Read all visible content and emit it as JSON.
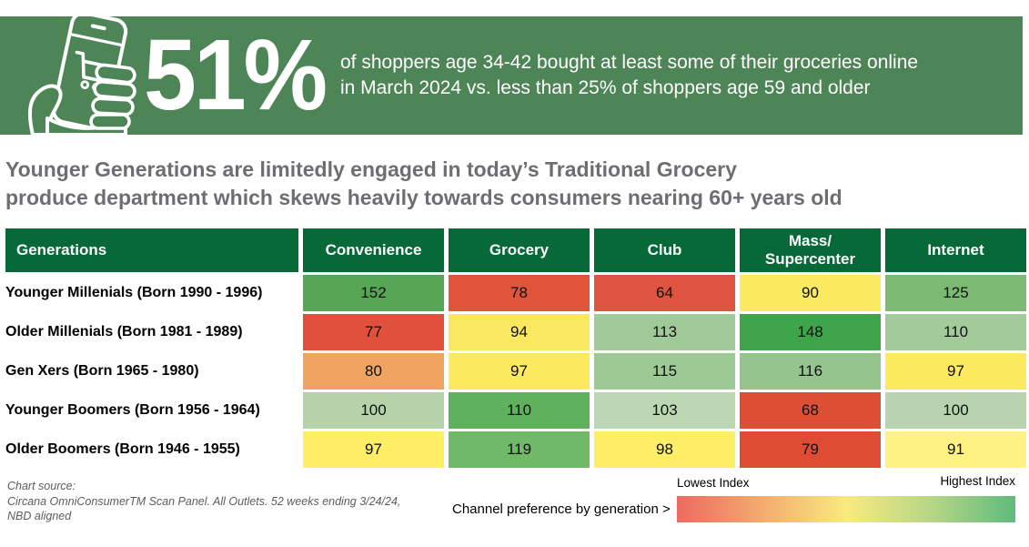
{
  "banner": {
    "bg_color": "#4e8556",
    "icon": "phone-shopping-cart-icon",
    "stat": "51%",
    "description_line1": "of shoppers age 34-42 bought at least some of their groceries online",
    "description_line2": "in March 2024 vs. less than 25% of shoppers age 59 and older"
  },
  "headline": {
    "line1": "Younger Generations are limitedly engaged in today’s Traditional Grocery",
    "line2": "produce department which skews heavily towards consumers nearing 60+ years old"
  },
  "table": {
    "header_bg": "#076838",
    "header": [
      "Generations",
      "Convenience",
      "Grocery",
      "Club",
      "Mass/\nSupercenter",
      "Internet"
    ],
    "cell_colors": [
      [
        "#56a656",
        "#e0543c",
        "#df5440",
        "#fbe95f",
        "#7cba73"
      ],
      [
        "#e0503a",
        "#fae960",
        "#a0ca97",
        "#3fa54a",
        "#a3cb9a"
      ],
      [
        "#efa55f",
        "#fbe960",
        "#9dc994",
        "#95c58d",
        "#fbe95e"
      ],
      [
        "#b5d2ab",
        "#5fb25b",
        "#bdd7b3",
        "#dd4f35",
        "#b8d4ae"
      ],
      [
        "#fdee66",
        "#70b967",
        "#fdee66",
        "#dd4c33",
        "#fdf282"
      ]
    ]
  },
  "chart_data": {
    "type": "heatmap",
    "title": "Younger Generations are limitedly engaged in today’s Traditional Grocery produce department which skews heavily towards consumers nearing 60+ years old",
    "columns": [
      "Convenience",
      "Grocery",
      "Club",
      "Mass/Supercenter",
      "Internet"
    ],
    "rows": [
      "Younger Millenials (Born 1990 - 1996)",
      "Older Millenials (Born 1981 - 1989)",
      "Gen Xers (Born 1965 - 1980)",
      "Younger Boomers (Born 1956 - 1964)",
      "Older Boomers (Born 1946 - 1955)"
    ],
    "values": [
      [
        152,
        78,
        64,
        90,
        125
      ],
      [
        77,
        94,
        113,
        148,
        110
      ],
      [
        80,
        97,
        115,
        116,
        97
      ],
      [
        100,
        110,
        103,
        68,
        100
      ],
      [
        97,
        119,
        98,
        79,
        91
      ]
    ],
    "legend": {
      "low": "Lowest Index",
      "high": "Highest Index"
    },
    "color_scale_note": "row-wise red (low) to green (high)"
  },
  "footer": {
    "source_line1": "Chart source:",
    "source_line2": "Circana OmniConsumerTM Scan Panel. All Outlets. 52 weeks ending 3/24/24,",
    "source_line3": "NBD aligned",
    "caption": "Channel preference by generation >",
    "legend_low_label": "Lowest Index",
    "legend_high_label": "Highest Index",
    "legend_gradient": [
      "#ec6a60",
      "#f4ab6e",
      "#f9ea7e",
      "#b7d687",
      "#5fbb7c"
    ]
  }
}
